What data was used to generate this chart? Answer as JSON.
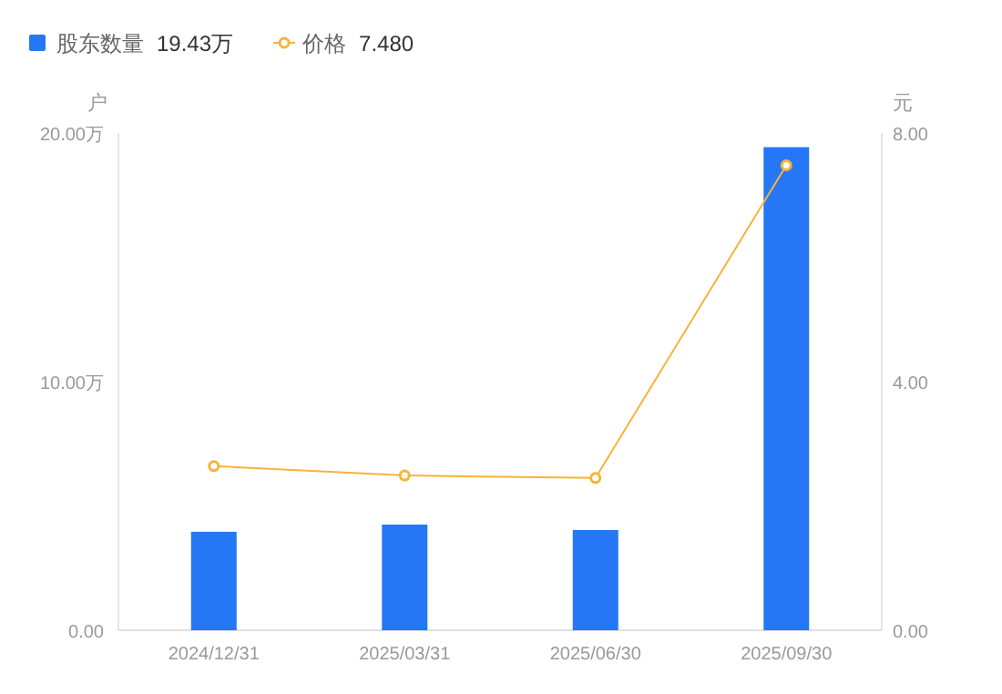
{
  "chart_data": {
    "type": "bar",
    "ylabel": "户",
    "y2label": "元",
    "categories": [
      "2024/12/31",
      "2025/03/31",
      "2025/06/30",
      "2025/09/30"
    ],
    "series": [
      {
        "name": "股东数量",
        "color": "#2577f6",
        "values": [
          3.96,
          4.25,
          4.03,
          19.43
        ]
      },
      {
        "name": "价格",
        "type": "line",
        "axis": "y2",
        "color": "#f7b33a",
        "values": [
          2.64,
          2.49,
          2.45,
          7.48
        ],
        "marker": "circle"
      }
    ],
    "ylim": [
      0,
      20
    ],
    "yticks": [
      {
        "value": 0,
        "label": "0.00"
      },
      {
        "value": 10,
        "label": "10.00万"
      },
      {
        "value": 20,
        "label": "20.00万"
      }
    ],
    "y2lim": [
      0,
      8
    ],
    "y2ticks": [
      {
        "value": 0,
        "label": "0.00"
      },
      {
        "value": 4,
        "label": "4.00"
      },
      {
        "value": 8,
        "label": "8.00"
      }
    ],
    "legend": "top left",
    "annotations": [
      "19.43万",
      "7.480"
    ]
  }
}
